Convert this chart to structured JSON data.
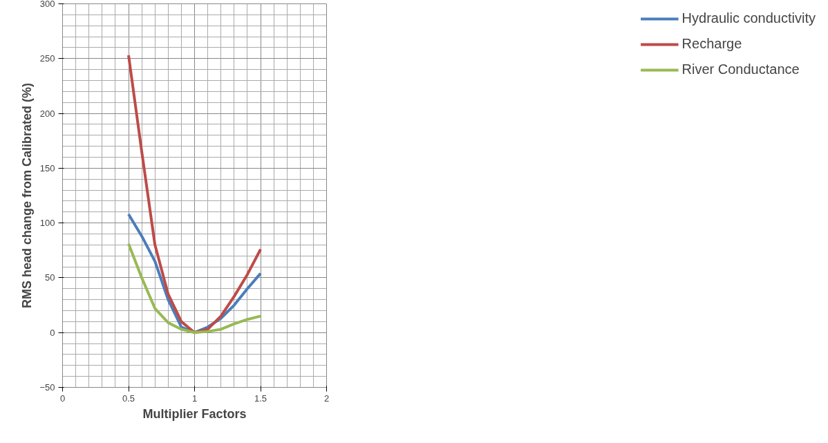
{
  "chart_data": {
    "type": "line",
    "xlabel": "Multiplier Factors",
    "ylabel": "RMS head change from Calibrated (%)",
    "x": [
      0.5,
      0.6,
      0.7,
      0.8,
      0.9,
      1.0,
      1.1,
      1.2,
      1.3,
      1.4,
      1.5
    ],
    "series": [
      {
        "name": "Hydraulic conductivity",
        "color": "#4a7ebb",
        "values": [
          108,
          88,
          65,
          30,
          5,
          0,
          5,
          13,
          25,
          40,
          54
        ]
      },
      {
        "name": "Recharge",
        "color": "#be4b48",
        "values": [
          253,
          165,
          80,
          35,
          10,
          0,
          3,
          15,
          33,
          53,
          76
        ]
      },
      {
        "name": "River Conductance",
        "color": "#98b954",
        "values": [
          81,
          50,
          22,
          9,
          3,
          0,
          1,
          3,
          8,
          12,
          15
        ]
      }
    ],
    "xlim": [
      0,
      2
    ],
    "xticks": [
      0,
      0.5,
      1,
      1.5,
      2
    ],
    "ylim": [
      -50,
      300
    ],
    "yticks": [
      -50,
      0,
      50,
      100,
      150,
      200,
      250,
      300
    ],
    "grid": true,
    "legend": "right",
    "marker": "none",
    "line_style": "solid"
  }
}
